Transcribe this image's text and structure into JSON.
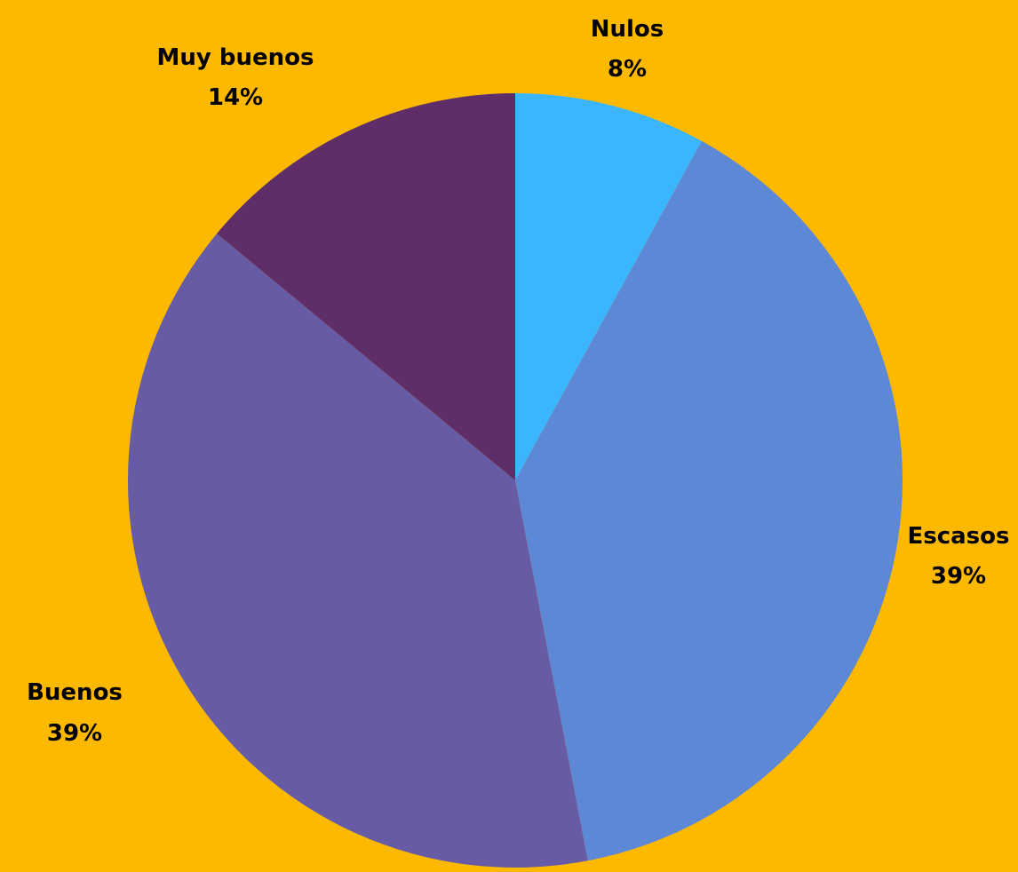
{
  "chart_data": {
    "type": "pie",
    "background": "#FCB900",
    "slices": [
      {
        "label": "Nulos",
        "value": 8,
        "percent_label": "8%",
        "color": "#3BB6FE"
      },
      {
        "label": "Escasos",
        "value": 39,
        "percent_label": "39%",
        "color": "#5D88D6"
      },
      {
        "label": "Buenos",
        "value": 39,
        "percent_label": "39%",
        "color": "#675BA5"
      },
      {
        "label": "Muy buenos",
        "value": 14,
        "percent_label": "14%",
        "color": "#5F2E69"
      }
    ],
    "start": "top",
    "direction": "clockwise",
    "legend": "none",
    "data_labels": "outside"
  }
}
